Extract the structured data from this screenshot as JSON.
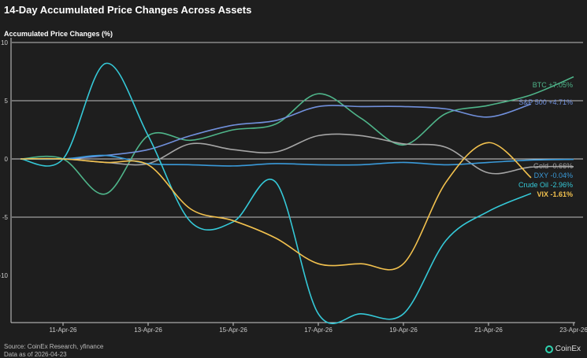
{
  "chart_data": {
    "type": "line",
    "title": "14-Day Accumulated Price Changes Across Assets",
    "ylabel": "Accumulated Price Changes (%)",
    "xlabel": "",
    "ylim": [
      -14,
      10
    ],
    "yticks": [
      10,
      5,
      0,
      -5,
      -10
    ],
    "x": [
      "10-Apr-26",
      "11-Apr-26",
      "12-Apr-26",
      "13-Apr-26",
      "14-Apr-26",
      "15-Apr-26",
      "16-Apr-26",
      "17-Apr-26",
      "18-Apr-26",
      "19-Apr-26",
      "20-Apr-26",
      "21-Apr-26",
      "22-Apr-26",
      "23-Apr-26"
    ],
    "xticks": [
      "11-Apr-26",
      "13-Apr-26",
      "15-Apr-26",
      "17-Apr-26",
      "19-Apr-26",
      "21-Apr-26",
      "23-Apr-26"
    ],
    "grid": "horizontal",
    "series": [
      {
        "name": "BTC",
        "label": "BTC +7.05%",
        "color": "#4fb58a",
        "values": [
          0,
          0,
          -3,
          2,
          1.6,
          2.5,
          3,
          5.6,
          3.5,
          1.2,
          3.9,
          4.6,
          5.5,
          7.05
        ]
      },
      {
        "name": "S&P 500",
        "label": "S&P 500 +4.71%",
        "color": "#7190dc",
        "values": [
          0,
          0,
          0.3,
          0.8,
          2,
          2.9,
          3.3,
          4.5,
          4.5,
          4.5,
          4.3,
          3.6,
          4.71,
          null
        ]
      },
      {
        "name": "Gold",
        "label": "Gold -0.66%",
        "color": "#a5a5a5",
        "values": [
          0,
          0,
          -0.3,
          -0.4,
          1.3,
          0.8,
          0.6,
          2,
          2,
          1.3,
          1,
          -1.2,
          -0.7,
          -0.66
        ]
      },
      {
        "name": "DXY",
        "label": "DXY -0.04%",
        "color": "#3a9ad9",
        "values": [
          0,
          0,
          0.3,
          -0.4,
          -0.5,
          -0.6,
          -0.4,
          -0.5,
          -0.5,
          -0.3,
          -0.5,
          -0.3,
          -0.1,
          -0.04
        ]
      },
      {
        "name": "Crude Oil",
        "label": "Crude Oil -2.96%",
        "color": "#35c9d8",
        "values": [
          0,
          0,
          8.2,
          2,
          -5.4,
          -5.4,
          -2,
          -13.3,
          -13.3,
          -13.3,
          -7,
          -4.5,
          -2.96,
          null
        ]
      },
      {
        "name": "VIX",
        "label": "VIX -1.61%",
        "color": "#f2c14e",
        "values": [
          0,
          0,
          -0.3,
          -0.5,
          -4.3,
          -5.3,
          -6.8,
          -9,
          -9,
          -9,
          -2,
          1.4,
          -1.61,
          null
        ]
      }
    ]
  },
  "footer": {
    "source": "Source: CoinEx Research, yfinance",
    "date": "Data as of 2026-04-23",
    "logo": "CoinEx"
  }
}
